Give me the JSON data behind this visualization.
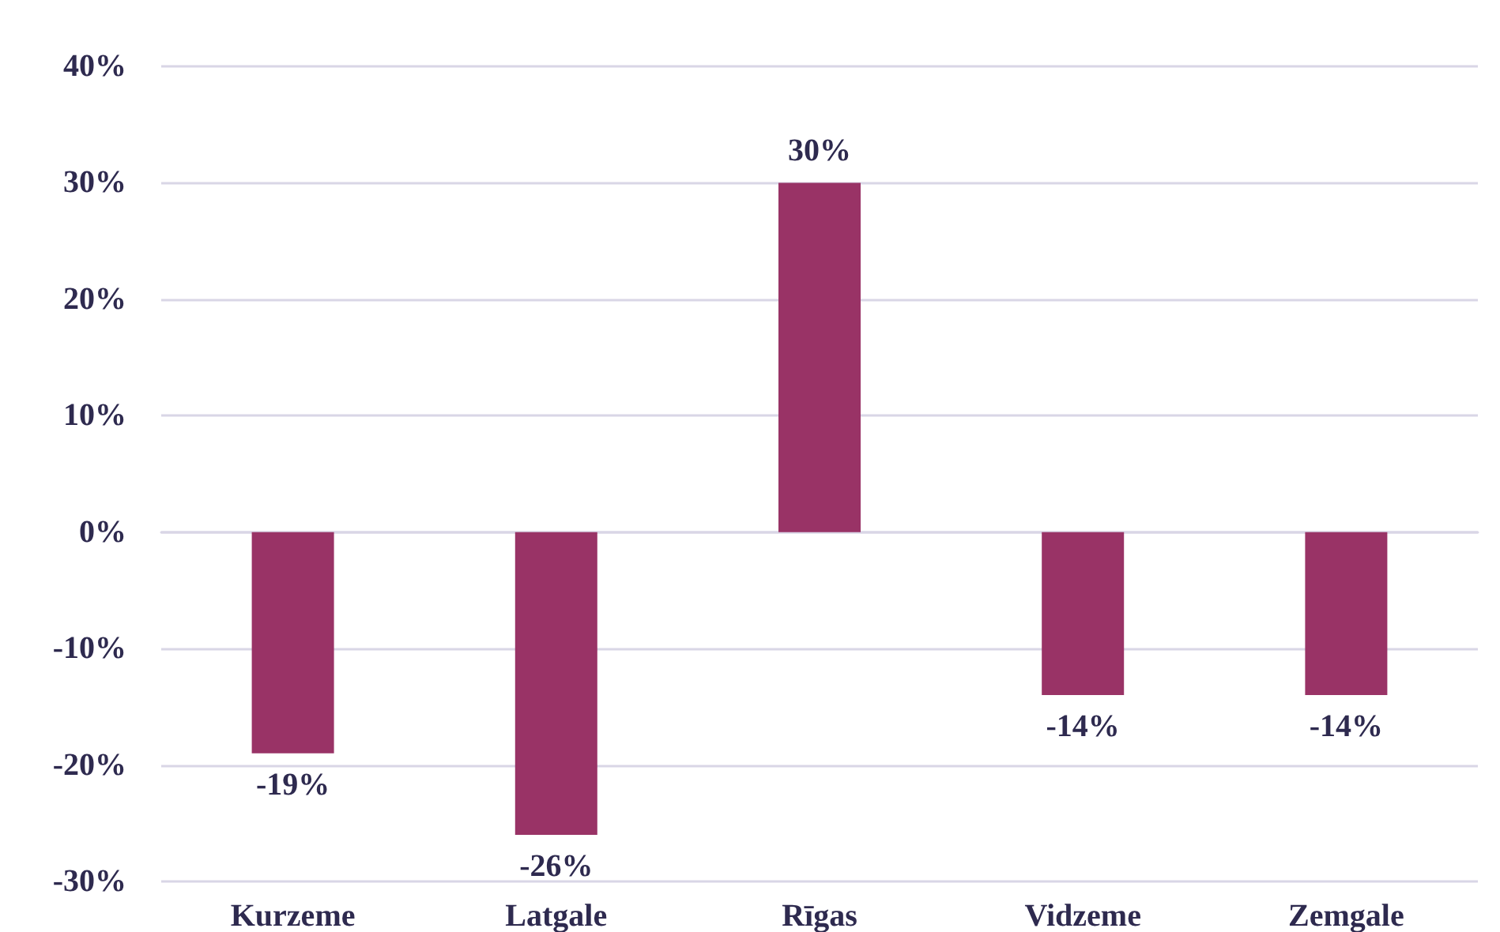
{
  "chart_data": {
    "type": "bar",
    "categories": [
      "Kurzeme",
      "Latgale",
      "Rīgas",
      "Vidzeme",
      "Zemgale"
    ],
    "values": [
      -19,
      -26,
      30,
      -14,
      -14
    ],
    "value_labels": [
      "-19%",
      "-26%",
      "30%",
      "-14%",
      "-14%"
    ],
    "color": "#993366",
    "ylim": [
      -30,
      40
    ],
    "yticks": [
      {
        "value": -30,
        "label": "-30%"
      },
      {
        "value": -20,
        "label": "-20%"
      },
      {
        "value": -10,
        "label": "-10%"
      },
      {
        "value": 0,
        "label": "0%"
      },
      {
        "value": 10,
        "label": "10%"
      },
      {
        "value": 20,
        "label": "20%"
      },
      {
        "value": 30,
        "label": "30%"
      },
      {
        "value": 40,
        "label": "40%"
      }
    ],
    "grid": "y"
  }
}
